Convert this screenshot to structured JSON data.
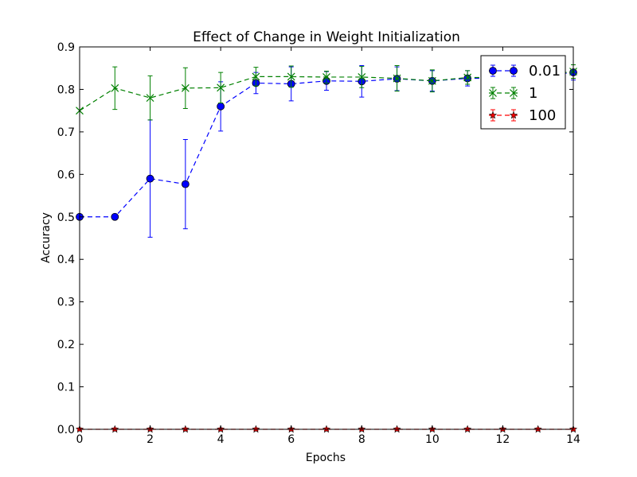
{
  "chart_data": {
    "type": "line",
    "title": "Effect of Change in Weight Initialization",
    "xlabel": "Epochs",
    "ylabel": "Accuracy",
    "xlim": [
      0,
      14
    ],
    "ylim": [
      0.0,
      0.9
    ],
    "xticks": [
      0,
      2,
      4,
      6,
      8,
      10,
      12,
      14
    ],
    "yticks": [
      0.0,
      0.1,
      0.2,
      0.3,
      0.4,
      0.5,
      0.6,
      0.7,
      0.8,
      0.9
    ],
    "grid": false,
    "legend_position": "top-right",
    "x": [
      0,
      1,
      2,
      3,
      4,
      5,
      6,
      7,
      8,
      9,
      10,
      11,
      12,
      13,
      14
    ],
    "series": [
      {
        "name": "0.01",
        "color": "#0000ff",
        "marker": "circle",
        "values": [
          0.5,
          0.5,
          0.59,
          0.577,
          0.76,
          0.815,
          0.813,
          0.82,
          0.819,
          0.825,
          0.82,
          0.826,
          0.826,
          0.83,
          0.84
        ],
        "errors": [
          0.0,
          0.0,
          0.138,
          0.105,
          0.058,
          0.025,
          0.04,
          0.022,
          0.037,
          0.028,
          0.024,
          0.018,
          0.018,
          0.018,
          0.018
        ]
      },
      {
        "name": "1",
        "color": "#008000",
        "marker": "x",
        "values": [
          0.75,
          0.803,
          0.78,
          0.803,
          0.804,
          0.83,
          0.83,
          0.829,
          0.829,
          0.826,
          0.82,
          0.828,
          0.828,
          0.832,
          0.842
        ],
        "errors": [
          0.0,
          0.05,
          0.052,
          0.048,
          0.036,
          0.022,
          0.025,
          0.014,
          0.025,
          0.03,
          0.026,
          0.016,
          0.016,
          0.016,
          0.016
        ]
      },
      {
        "name": "100",
        "color": "#ff0000",
        "marker": "star",
        "values": [
          0,
          0,
          0,
          0,
          0,
          0,
          0,
          0,
          0,
          0,
          0,
          0,
          0,
          0,
          0
        ],
        "errors": [
          0.003,
          0.003,
          0.003,
          0.003,
          0.003,
          0.003,
          0.003,
          0.003,
          0.003,
          0.003,
          0.003,
          0.003,
          0.003,
          0.003,
          0.003
        ]
      }
    ]
  }
}
